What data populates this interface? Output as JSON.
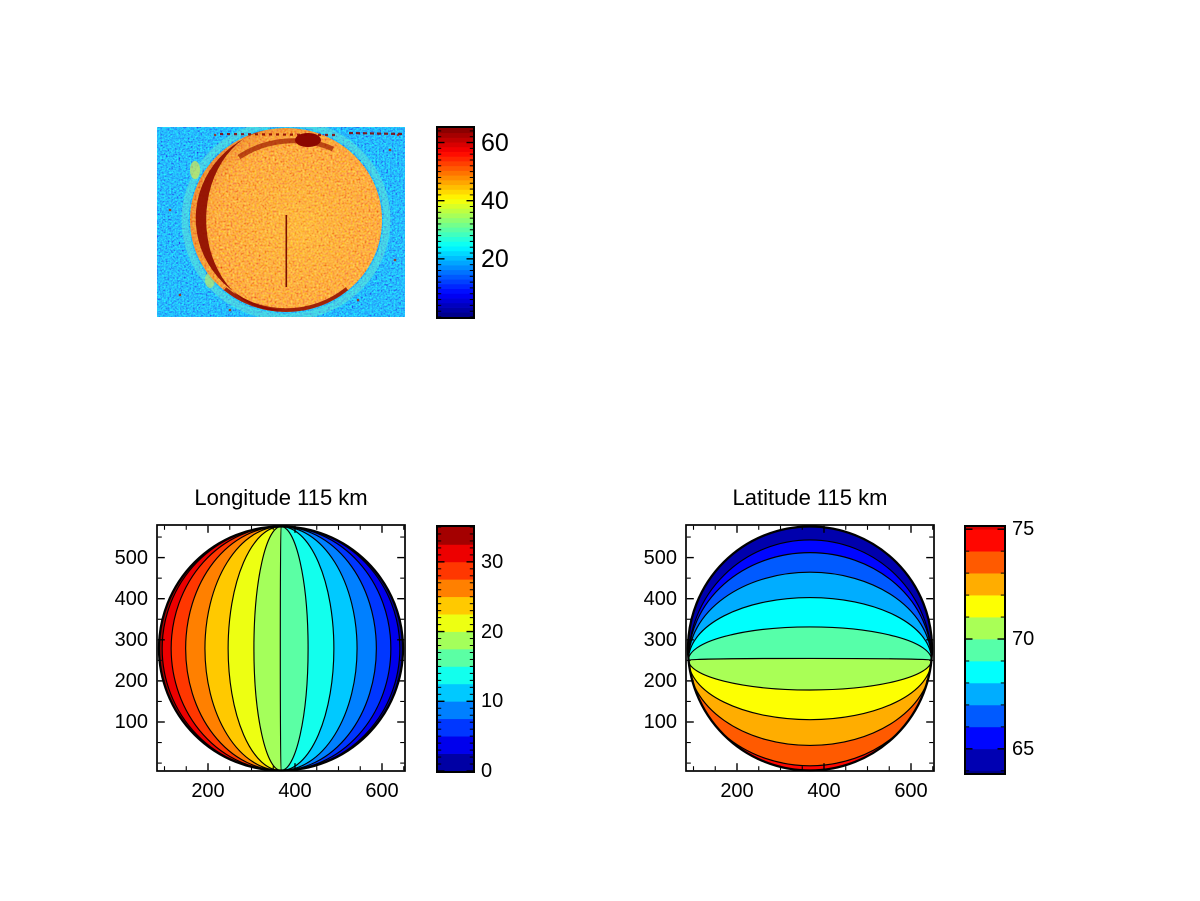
{
  "figure": {
    "background": "#FFFFFF",
    "window_title": ""
  },
  "panels": {
    "image": {
      "description": "noisy sky image of bright planetary disk",
      "colorbar": {
        "tick_labels": [
          "60",
          "40",
          "20"
        ],
        "colormap": "jet",
        "range": [
          0,
          65
        ]
      }
    },
    "longitude": {
      "title": "Longitude 115 km",
      "x_tick_labels": [
        "200",
        "400",
        "600"
      ],
      "y_tick_labels": [
        "500",
        "400",
        "300",
        "200",
        "100"
      ],
      "colorbar_tick_labels": [
        "30",
        "20",
        "10",
        "0"
      ]
    },
    "latitude": {
      "title": "Latitude 115 km",
      "x_tick_labels": [
        "200",
        "400",
        "600"
      ],
      "y_tick_labels": [
        "500",
        "400",
        "300",
        "200",
        "100"
      ],
      "colorbar_tick_labels": [
        "75",
        "70",
        "65"
      ]
    }
  },
  "chart_data": [
    {
      "type": "heatmap",
      "subtype": "image",
      "title": "",
      "colormap": "jet",
      "clim": [
        0,
        65
      ],
      "colorbar_ticks": [
        20,
        40,
        60
      ],
      "content": "Speckled blue background (values ~5-25) with a circular orange-red planetary disk (values ~45-65), saturated dark-red crescent on the left limb, small dark-red spot near the top limb, dark-red rim along the bottom limb, thin vertical dark line artifact below disk center, tiny dark-red annotation dashes along the top edge"
    },
    {
      "type": "heatmap",
      "subtype": "filled-contour",
      "title": "Longitude 115 km",
      "colormap": "jet",
      "xlim": [
        83,
        653
      ],
      "ylim": [
        -20,
        578
      ],
      "x_ticks": [
        200,
        400,
        600
      ],
      "y_ticks": [
        100,
        200,
        300,
        400,
        500
      ],
      "minor_tick_step": 50,
      "grid": false,
      "clim": [
        0,
        35
      ],
      "contour_levels": [
        2.5,
        5,
        7.5,
        10,
        12.5,
        15,
        17.5,
        20,
        22.5,
        25,
        27.5,
        30,
        32.5
      ],
      "colorbar_ticks": [
        0,
        10,
        20,
        30
      ],
      "band_colors": [
        "#A40000",
        "#ED0000",
        "#FF3700",
        "#FF8000",
        "#FFC900",
        "#EDFF12",
        "#A4FF5B",
        "#5BFFA4",
        "#12FFED",
        "#00C9FF",
        "#0080FF",
        "#0037FF",
        "#0000ED",
        "#0000A4"
      ],
      "band_color_order": "left-to-right (value 35 at left limb down to 0 at right limb)",
      "disk": {
        "center": [
          368,
          279
        ],
        "radius_x_units": 280
      },
      "pattern": "meridian-like contour arcs converging at top and bottom poles of a spherical disk, sine-spaced (bunched at limbs)"
    },
    {
      "type": "heatmap",
      "subtype": "filled-contour",
      "title": "Latitude 115 km",
      "colormap": "jet",
      "xlim": [
        83,
        653
      ],
      "ylim": [
        -20,
        578
      ],
      "x_ticks": [
        200,
        400,
        600
      ],
      "y_ticks": [
        100,
        200,
        300,
        400,
        500
      ],
      "minor_tick_step": 50,
      "grid": false,
      "clim": [
        63.9,
        75.1
      ],
      "contour_levels": [
        65,
        66,
        67,
        68,
        69,
        70,
        71,
        72,
        73,
        74,
        75,
        76
      ],
      "colorbar_ticks": [
        65,
        70,
        75
      ],
      "band_colors": [
        "#0000AD",
        "#0006FF",
        "#005AFF",
        "#00ADFF",
        "#00FFFD",
        "#56FFA9",
        "#A9FF56",
        "#FDFF02",
        "#FFAD00",
        "#FF5A00",
        "#FF0600",
        "#B10000",
        "#780000"
      ],
      "band_color_order": "top-to-bottom (value ~64 at top limb up to ~76 at bottom limb)",
      "disk": {
        "center": [
          368,
          279
        ],
        "radius_x_units": 280
      },
      "pattern": "parallel-like contour arcs converging at left and right equator points; nearly flat contour at value 70 slightly below disk center; arcs bow upward above it and downward below it"
    }
  ]
}
